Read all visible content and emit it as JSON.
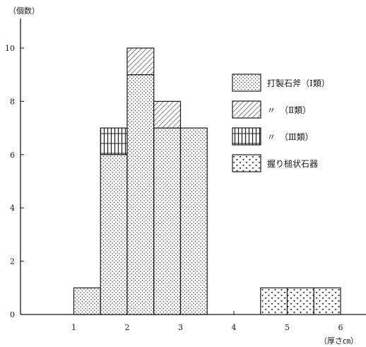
{
  "chart_data": {
    "type": "bar",
    "stacked": true,
    "ylabel": "（個数）",
    "xlabel": "（厚さ㎝）",
    "xlim": [
      0,
      6.5
    ],
    "ylim": [
      0,
      11
    ],
    "x_ticks": [
      1,
      2,
      3,
      4,
      5,
      6
    ],
    "y_ticks": [
      0,
      2,
      4,
      6,
      8,
      10
    ],
    "bin_width": 0.5,
    "bins": [
      1.25,
      1.75,
      2.25,
      2.75,
      3.25,
      4.75,
      5.25,
      5.75
    ],
    "series": [
      {
        "key": "type1",
        "name": "打製石斧（Ⅰ類）",
        "pattern": "dots",
        "values": [
          1,
          6,
          9,
          7,
          7,
          0,
          0,
          0
        ]
      },
      {
        "key": "type2",
        "name": "〃　（Ⅱ類）",
        "pattern": "hatch",
        "values": [
          0,
          0,
          1,
          1,
          0,
          0,
          0,
          0
        ]
      },
      {
        "key": "type3",
        "name": "〃　（Ⅲ類）",
        "pattern": "vertical-lines",
        "values": [
          0,
          1,
          0,
          0,
          0,
          0,
          0,
          0
        ]
      },
      {
        "key": "grip",
        "name": "握り槌状石器",
        "pattern": "triangles",
        "values": [
          0,
          0,
          0,
          0,
          0,
          1,
          1,
          1
        ]
      }
    ],
    "legend_position": "right",
    "grid": false
  }
}
